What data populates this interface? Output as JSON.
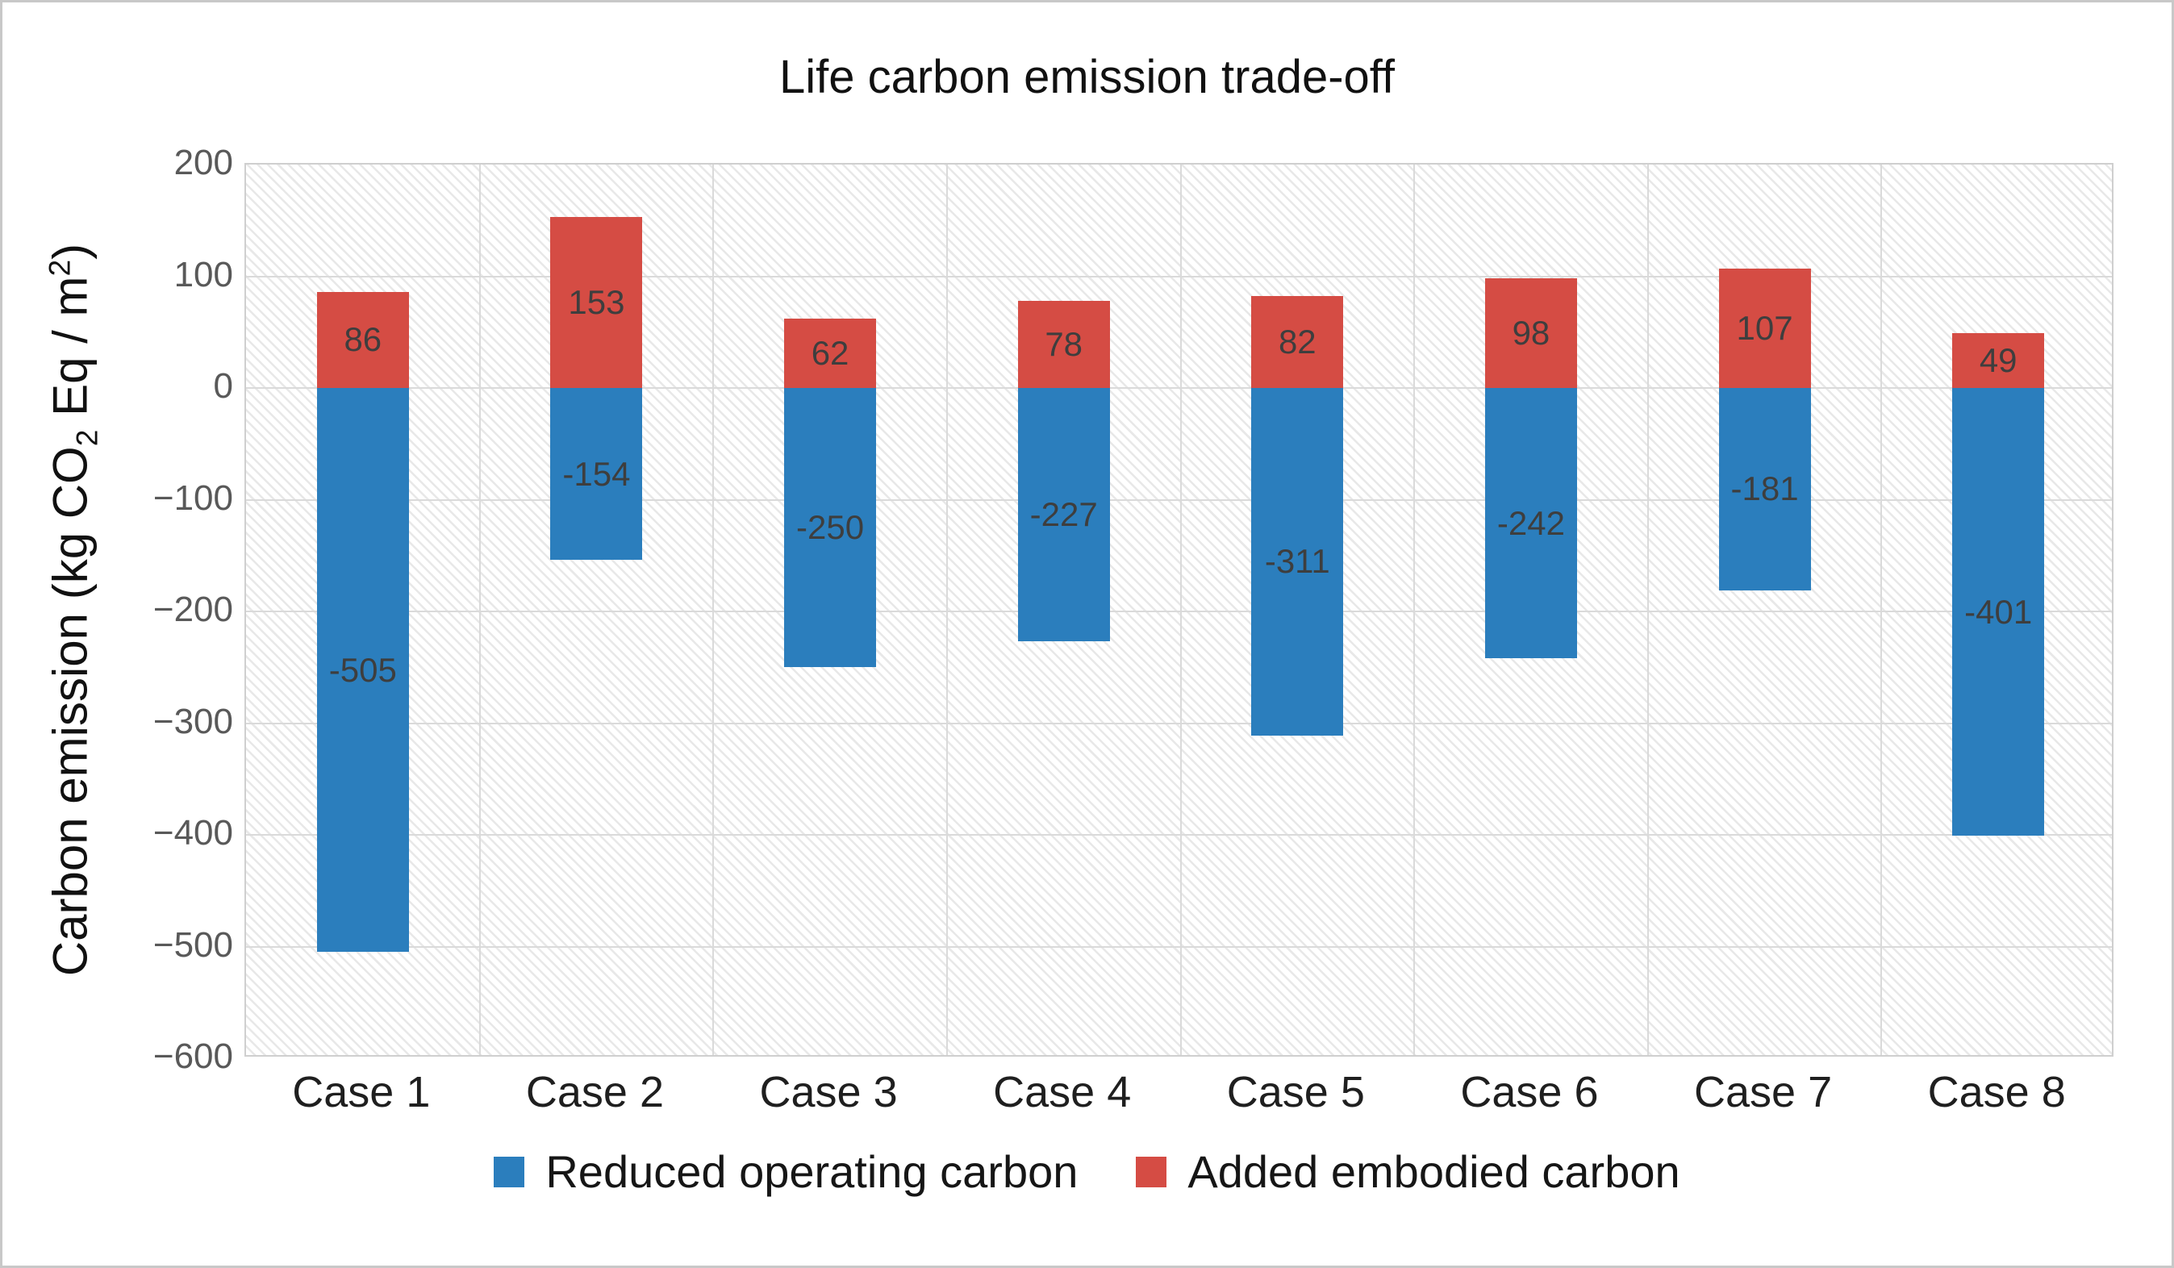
{
  "title": "Life carbon emission trade-off",
  "y_axis": {
    "title_parts": {
      "p1": "Carbon emission (kg CO",
      "sub": "2",
      "p2": " Eq / m",
      "sup": "2",
      "p3": ")"
    },
    "ticks": [
      "200",
      "100",
      "0",
      "−100",
      "−200",
      "−300",
      "−400",
      "−500",
      "−600"
    ]
  },
  "chart_data": {
    "type": "bar",
    "stacked": true,
    "title": "Life carbon emission trade-off",
    "xlabel": "",
    "ylabel": "Carbon emission (kg CO2 Eq / m2)",
    "categories": [
      "Case 1",
      "Case 2",
      "Case 3",
      "Case 4",
      "Case 5",
      "Case 6",
      "Case 7",
      "Case 8"
    ],
    "series": [
      {
        "name": "Reduced operating carbon",
        "color": "#2b7ebd",
        "values": [
          -505,
          -154,
          -250,
          -227,
          -311,
          -242,
          -181,
          -401
        ]
      },
      {
        "name": "Added embodied carbon",
        "color": "#d54c44",
        "values": [
          86,
          153,
          62,
          78,
          82,
          98,
          107,
          49
        ]
      }
    ],
    "ylim": [
      -600,
      200
    ],
    "ytick_step": 100,
    "grid": "on",
    "plot_background": "diagonal-hatch",
    "legend_position": "bottom",
    "data_labels": "inside-center",
    "colors": {
      "grid": "#dadada",
      "hatch": "#e8e8e8",
      "tick_label": "#595959",
      "data_label": "#3e3e3e"
    }
  }
}
